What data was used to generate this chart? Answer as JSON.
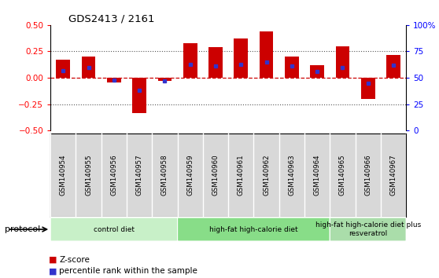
{
  "title": "GDS2413 / 2161",
  "samples": [
    "GSM140954",
    "GSM140955",
    "GSM140956",
    "GSM140957",
    "GSM140958",
    "GSM140959",
    "GSM140960",
    "GSM140961",
    "GSM140962",
    "GSM140963",
    "GSM140964",
    "GSM140965",
    "GSM140966",
    "GSM140967"
  ],
  "zscore": [
    0.17,
    0.2,
    -0.04,
    -0.33,
    -0.03,
    0.33,
    0.29,
    0.37,
    0.44,
    0.2,
    0.12,
    0.3,
    -0.2,
    0.22
  ],
  "percentile": [
    57,
    60,
    48,
    38,
    47,
    63,
    61,
    63,
    65,
    61,
    56,
    60,
    45,
    62
  ],
  "bar_color": "#cc0000",
  "dot_color": "#3333cc",
  "ylim": [
    -0.5,
    0.5
  ],
  "yticks_left": [
    -0.5,
    -0.25,
    0,
    0.25,
    0.5
  ],
  "right_ytick_labels": [
    "100%",
    "75",
    "50",
    "25",
    "0"
  ],
  "hline_color": "#cc0000",
  "dotted_color": "#555555",
  "bg_color": "#ffffff",
  "cell_bg": "#d8d8d8",
  "groups": [
    {
      "label": "control diet",
      "start": 0,
      "end": 5,
      "color": "#c8f0c8"
    },
    {
      "label": "high-fat high-calorie diet",
      "start": 5,
      "end": 11,
      "color": "#88dd88"
    },
    {
      "label": "high-fat high-calorie diet plus\nresveratrol",
      "start": 11,
      "end": 14,
      "color": "#aaddaa"
    }
  ],
  "legend_zscore": "Z-score",
  "legend_pct": "percentile rank within the sample",
  "protocol_label": "protocol"
}
